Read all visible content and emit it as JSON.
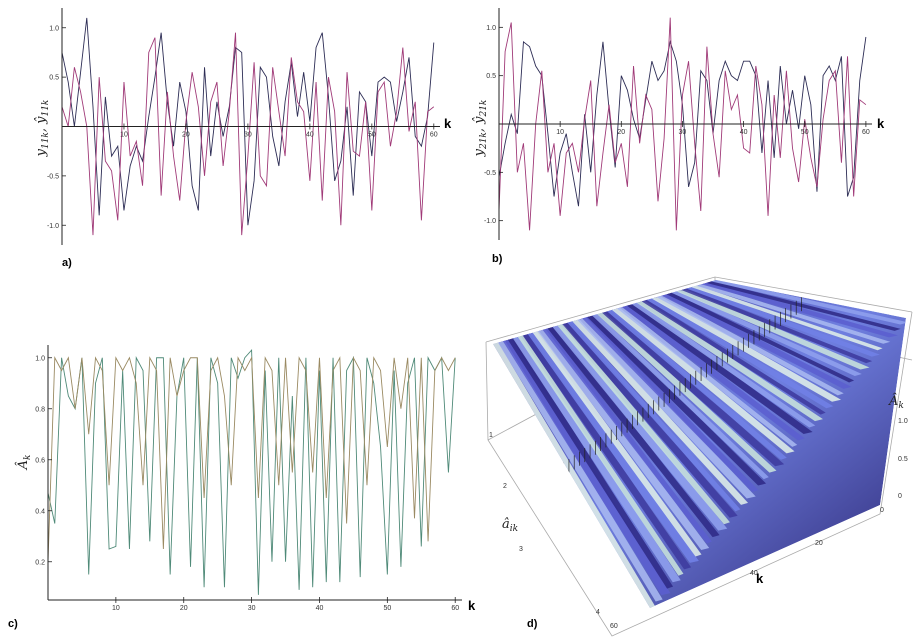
{
  "chart_data": [
    {
      "panel": "a)",
      "type": "line",
      "xlabel": "k",
      "ylabel": "y11k, ŷ11k",
      "xlim": [
        0,
        61
      ],
      "ylim": [
        -1.2,
        1.2
      ],
      "xticks": [
        10,
        20,
        30,
        40,
        50,
        60
      ],
      "yticks": [
        -1.0,
        -0.5,
        0.5,
        1.0
      ],
      "series": [
        {
          "color": "#2d2d55",
          "values": [
            0.75,
            0.45,
            0.0,
            0.55,
            1.1,
            0.2,
            -0.9,
            0.3,
            -0.3,
            -0.2,
            -0.85,
            -0.4,
            -0.2,
            -0.35,
            0.1,
            0.5,
            0.95,
            0.25,
            -0.2,
            0.45,
            0.15,
            -0.6,
            -0.85,
            0.6,
            -0.3,
            0.25,
            -0.1,
            0.2,
            0.8,
            0.75,
            -1.0,
            -0.55,
            0.6,
            0.5,
            -0.1,
            -0.4,
            0.25,
            0.65,
            0.1,
            0.55,
            0.05,
            0.8,
            0.95,
            0.3,
            -0.55,
            -0.35,
            0.2,
            -0.7,
            0.35,
            0.25,
            -0.3,
            0.45,
            0.5,
            0.45,
            0.05,
            0.35,
            0.7,
            -0.1,
            -0.2,
            0.1,
            0.85
          ]
        },
        {
          "color": "#a03a78",
          "values": [
            0.2,
            0.0,
            0.6,
            0.35,
            0.0,
            -1.1,
            0.5,
            -0.35,
            -0.45,
            -0.95,
            0.45,
            -0.3,
            -0.15,
            -0.6,
            0.75,
            0.9,
            -0.7,
            0.35,
            -0.3,
            -0.75,
            0.05,
            0.55,
            0.2,
            -0.5,
            0.25,
            0.45,
            -0.4,
            0.15,
            0.95,
            -1.1,
            -0.3,
            0.65,
            -0.5,
            -0.6,
            0.6,
            0.15,
            -0.3,
            0.7,
            0.25,
            0.15,
            -0.55,
            0.45,
            -0.75,
            0.5,
            0.15,
            -1.0,
            0.55,
            -0.25,
            -0.3,
            0.25,
            -0.85,
            0.35,
            0.45,
            -0.2,
            0.15,
            0.8,
            -0.05,
            0.25,
            -0.95,
            0.15,
            0.2
          ]
        }
      ]
    },
    {
      "panel": "b)",
      "type": "line",
      "xlabel": "k",
      "ylabel": "y21k, ŷ21k",
      "xlim": [
        0,
        61
      ],
      "ylim": [
        -1.2,
        1.2
      ],
      "xticks": [
        10,
        20,
        30,
        40,
        50,
        60
      ],
      "yticks": [
        -1.0,
        -0.5,
        0.5,
        1.0
      ],
      "series": [
        {
          "color": "#2d2d55",
          "values": [
            -0.55,
            -0.2,
            0.1,
            -0.1,
            0.85,
            0.8,
            0.6,
            0.5,
            -0.1,
            -0.75,
            -0.3,
            -0.1,
            -0.5,
            -0.85,
            0.1,
            -0.5,
            0.3,
            0.85,
            0.15,
            -0.45,
            0.5,
            0.35,
            0.05,
            -0.15,
            0.25,
            0.65,
            0.45,
            0.55,
            0.85,
            0.65,
            0.2,
            -0.65,
            -0.4,
            0.55,
            0.45,
            -0.1,
            0.45,
            0.65,
            0.5,
            0.45,
            0.65,
            0.65,
            0.5,
            -0.3,
            0.45,
            -0.35,
            0.6,
            0.0,
            0.35,
            -0.05,
            0.5,
            0.2,
            -0.7,
            0.5,
            0.6,
            0.45,
            0.7,
            -0.75,
            -0.55,
            0.45,
            0.9
          ]
        },
        {
          "color": "#a03a78",
          "values": [
            -0.9,
            0.75,
            1.05,
            -0.5,
            -0.2,
            -1.1,
            0.0,
            0.55,
            -0.5,
            -0.2,
            -0.95,
            -0.3,
            -0.2,
            -0.5,
            0.05,
            0.45,
            -0.85,
            -0.3,
            0.2,
            -0.4,
            -0.2,
            -0.65,
            0.6,
            -0.2,
            0.3,
            0.15,
            -0.8,
            -0.15,
            1.1,
            -1.1,
            0.3,
            0.65,
            -0.2,
            -0.9,
            0.8,
            -0.1,
            -0.55,
            0.55,
            0.15,
            0.3,
            -0.25,
            -0.3,
            0.6,
            0.2,
            -0.95,
            0.3,
            -0.35,
            0.55,
            -0.25,
            -0.6,
            0.05,
            -0.35,
            -0.65,
            0.05,
            0.45,
            0.55,
            -0.4,
            0.7,
            -0.75,
            0.25,
            0.2
          ]
        }
      ]
    },
    {
      "panel": "c)",
      "type": "line",
      "xlabel": "k",
      "ylabel": "Âk",
      "xlim": [
        0,
        61
      ],
      "ylim": [
        0.05,
        1.05
      ],
      "xticks": [
        10,
        20,
        30,
        40,
        50,
        60
      ],
      "yticks": [
        0.2,
        0.4,
        0.6,
        0.8,
        1.0
      ],
      "series": [
        {
          "color": "#4f8a78",
          "values": [
            0.47,
            0.35,
            1.0,
            0.85,
            0.8,
            1.0,
            0.15,
            0.9,
            1.0,
            0.25,
            0.26,
            0.95,
            0.25,
            1.0,
            0.95,
            0.28,
            1.0,
            1.0,
            0.15,
            0.85,
            1.0,
            0.18,
            1.0,
            0.1,
            1.0,
            0.9,
            0.1,
            1.0,
            0.92,
            1.0,
            1.03,
            0.07,
            0.95,
            0.2,
            1.0,
            0.2,
            0.85,
            0.09,
            1.0,
            0.1,
            0.95,
            0.12,
            1.0,
            0.12,
            0.95,
            1.0,
            0.14,
            1.0,
            0.9,
            0.65,
            0.15,
            0.95,
            0.18,
            0.9,
            1.0,
            0.26,
            1.0,
            0.95,
            1.0,
            0.55,
            1.0
          ]
        },
        {
          "color": "#9a8a62",
          "values": [
            0.2,
            1.0,
            0.95,
            1.0,
            0.8,
            1.0,
            0.7,
            1.0,
            0.95,
            0.5,
            1.0,
            0.95,
            1.0,
            0.9,
            0.5,
            1.0,
            0.95,
            0.25,
            1.0,
            0.85,
            0.95,
            1.0,
            1.0,
            0.45,
            0.95,
            1.0,
            0.85,
            0.5,
            1.0,
            0.95,
            1.0,
            0.45,
            1.0,
            0.95,
            0.5,
            1.0,
            0.55,
            1.0,
            0.95,
            0.55,
            1.0,
            0.45,
            0.95,
            1.0,
            0.35,
            1.0,
            0.95,
            0.5,
            1.0,
            0.95,
            0.65,
            1.0,
            0.8,
            1.0,
            0.37,
            1.0,
            0.28,
            0.95,
            1.0,
            0.95,
            1.0
          ]
        }
      ]
    },
    {
      "panel": "d)",
      "type": "surface",
      "xlabel": "k",
      "ylabel": "âik",
      "zlabel": "Âk",
      "xticks": [
        0,
        20,
        40,
        60
      ],
      "yticks": [
        1,
        2,
        3,
        4
      ],
      "zticks": [
        0.0,
        0.5,
        1.0
      ]
    }
  ]
}
